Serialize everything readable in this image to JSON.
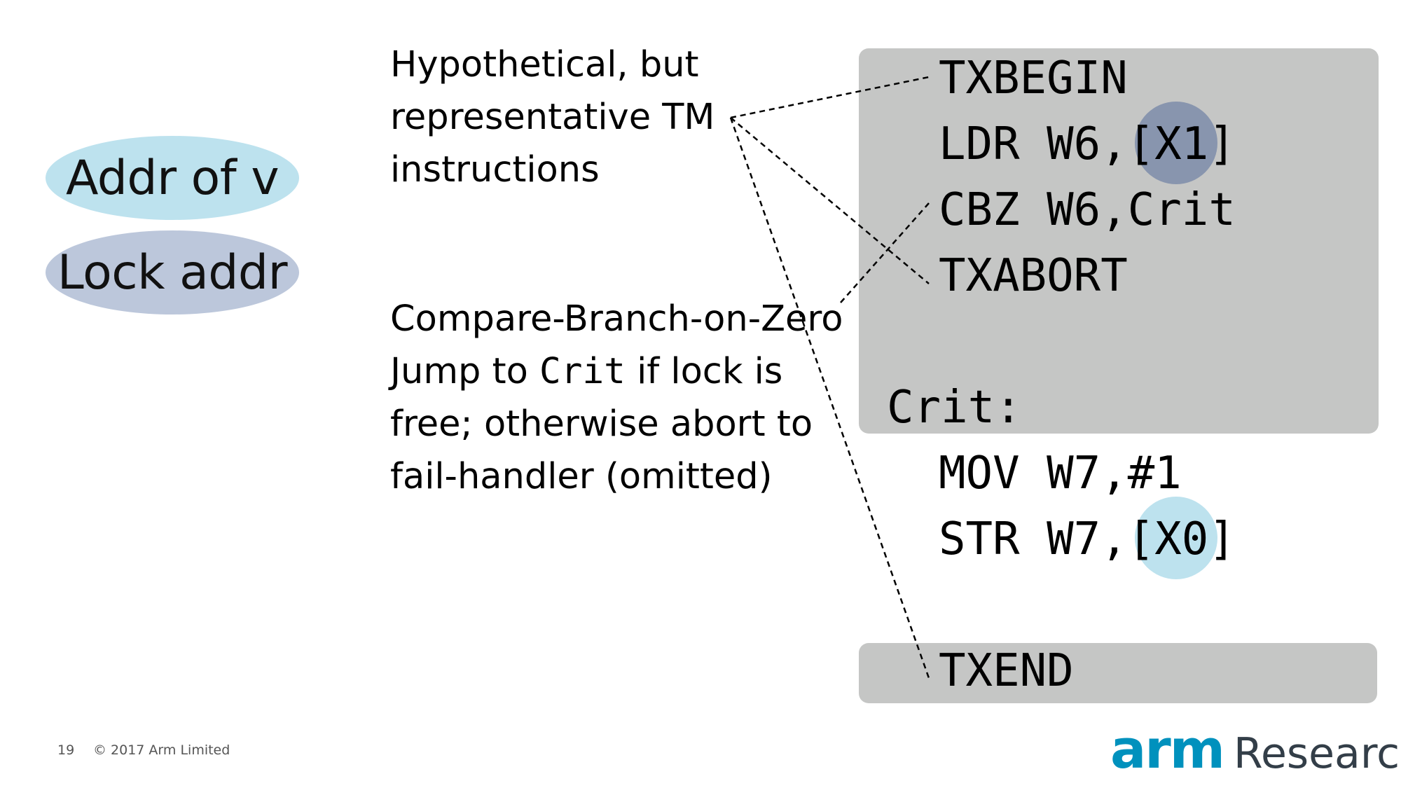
{
  "legend": {
    "addr_of_v": "Addr of v",
    "lock_addr": "Lock addr"
  },
  "notes": {
    "tm_lines": [
      "Hypothetical, but",
      "representative TM",
      "instructions"
    ],
    "cbz_line1": "Compare-Branch-on-Zero",
    "cbz_line2_pre": "Jump to ",
    "cbz_line2_code": "Crit",
    "cbz_line2_post": " if lock is",
    "cbz_line3": "free; otherwise abort to",
    "cbz_line4": "fail-handler (omitted)"
  },
  "code": {
    "txbegin": "TXBEGIN",
    "ldr": "LDR W6,[X1]",
    "cbz": "CBZ W6,Crit",
    "txabort": "TXABORT",
    "crit_label": "Crit:",
    "mov": "MOV W7,#1",
    "str": "STR W7,[X0]",
    "txend": "TXEND"
  },
  "colors": {
    "addr_of_v": "#bde2ee",
    "lock_addr": "#bcc7db",
    "tx_box": "#c5c6c5",
    "arm_blue": "#0091bd"
  },
  "footer": {
    "page_number": "19",
    "copyright": "© 2017 Arm Limited"
  },
  "logo": {
    "brand": "arm",
    "suffix": "Research"
  }
}
